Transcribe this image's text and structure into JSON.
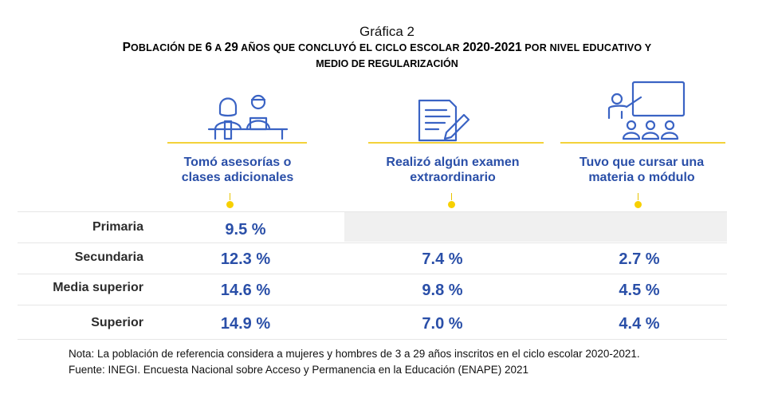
{
  "figure_label": "Gráfica 2",
  "title_parts": [
    {
      "text": "P",
      "sc": false
    },
    {
      "text": "OBLACIÓN DE ",
      "sc": true
    },
    {
      "text": "6",
      "sc": false
    },
    {
      "text": " A ",
      "sc": true
    },
    {
      "text": "29",
      "sc": false
    },
    {
      "text": " AÑOS QUE CONCLUYÓ EL CICLO ESCOLAR ",
      "sc": true
    },
    {
      "text": "2020-2021",
      "sc": false
    },
    {
      "text": " POR NIVEL EDUCATIVO Y",
      "sc": true
    }
  ],
  "title_line2": "MEDIO DE REGULARIZACIÓN",
  "colors": {
    "accent": "#2a4fa8",
    "yellow": "#f3d23a",
    "dot": "#f7d000",
    "shade": "#f0f0f0"
  },
  "chart_data": {
    "type": "table",
    "columns": [
      {
        "label_line1": "Tomó asesorías o",
        "label_line2": "clases adicionales",
        "icon": "tutoring-icon"
      },
      {
        "label_line1": "Realizó algún examen",
        "label_line2": "extraordinario",
        "icon": "exam-document-icon"
      },
      {
        "label_line1": "Tuvo que cursar una",
        "label_line2": "materia o módulo",
        "icon": "classroom-icon"
      }
    ],
    "rows": [
      {
        "label": "Primaria",
        "values": [
          "9.5 %",
          "",
          ""
        ]
      },
      {
        "label": "Secundaria",
        "values": [
          "12.3 %",
          "7.4 %",
          "2.7 %"
        ]
      },
      {
        "label": "Media superior",
        "values": [
          "14.6 %",
          "9.8 %",
          "4.5 %"
        ]
      },
      {
        "label": "Superior",
        "values": [
          "14.9 %",
          "7.0 %",
          "4.4 %"
        ]
      }
    ]
  },
  "notes": [
    "Nota: La población de referencia considera a mujeres y hombres de 3 a 29 años inscritos en el ciclo escolar 2020-2021.",
    "Fuente: INEGI. Encuesta Nacional sobre Acceso y Permanencia en la Educación (ENAPE) 2021"
  ]
}
